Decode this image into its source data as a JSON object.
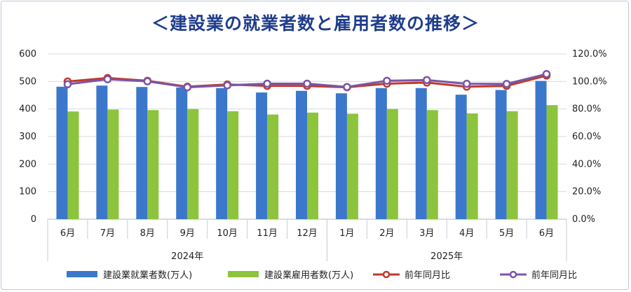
{
  "chart_data": {
    "type": "bar",
    "title": "＜建設業の就業者数と雇用者数の推移＞",
    "categories": [
      "6月",
      "7月",
      "8月",
      "9月",
      "10月",
      "11月",
      "12月",
      "1月",
      "2月",
      "3月",
      "4月",
      "5月",
      "6月"
    ],
    "year_groups": [
      {
        "label": "2024年",
        "start": 0,
        "end": 6
      },
      {
        "label": "2025年",
        "start": 7,
        "end": 12
      }
    ],
    "y_left": {
      "min": 0,
      "max": 600,
      "ticks": [
        "0",
        "100",
        "200",
        "300",
        "400",
        "500",
        "600"
      ]
    },
    "y_right": {
      "min": 0,
      "max": 120,
      "ticks": [
        "0.0%",
        "20.0%",
        "40.0%",
        "60.0%",
        "80.0%",
        "100.0%",
        "120.0%"
      ]
    },
    "grid": true,
    "legend_position": "bottom",
    "series": [
      {
        "name": "建設業就業者数(万人)",
        "type": "bar",
        "axis": "left",
        "color": "#3b78cc",
        "values": [
          481,
          485,
          480,
          478,
          476,
          460,
          466,
          457,
          476,
          476,
          452,
          469,
          502
        ]
      },
      {
        "name": "建設業雇用者数(万人)",
        "type": "bar",
        "axis": "left",
        "color": "#8cc43c",
        "values": [
          391,
          398,
          396,
          400,
          392,
          380,
          387,
          383,
          400,
          396,
          384,
          392,
          414
        ]
      },
      {
        "name": "前年同月比",
        "type": "line",
        "axis": "right",
        "color": "#c0392b",
        "values": [
          100.0,
          102.5,
          100.5,
          96.2,
          97.8,
          96.8,
          96.8,
          95.8,
          98.4,
          99.2,
          96.2,
          96.8,
          104.3
        ]
      },
      {
        "name": "前年同月比",
        "type": "line",
        "axis": "right",
        "color": "#7b55a6",
        "values": [
          98.0,
          101.6,
          100.1,
          95.8,
          97.2,
          98.4,
          98.4,
          96.0,
          100.5,
          101.0,
          98.3,
          98.2,
          105.4
        ]
      }
    ]
  }
}
